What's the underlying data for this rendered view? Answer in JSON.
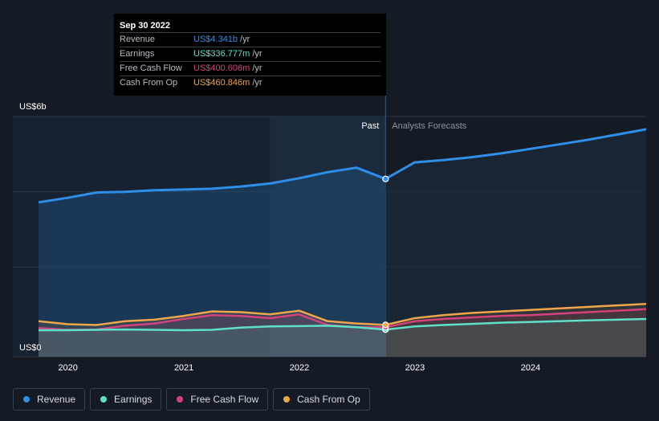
{
  "chart_data": {
    "type": "line",
    "y_axis": {
      "max_label": "US$6b",
      "min_label": "US$0",
      "ylim": [
        0,
        6
      ]
    },
    "x_axis": {
      "tick_labels": [
        "2020",
        "2021",
        "2022",
        "2023",
        "2024"
      ],
      "xlim": [
        "2019-09-30",
        "2024-12-31"
      ]
    },
    "divider": {
      "past_label": "Past",
      "forecast_label": "Analysts Forecasts",
      "date": "2022-09-30"
    },
    "highlight_start": "2021-09-30",
    "series": [
      {
        "name": "Revenue",
        "color": "#2e8ee8",
        "points": [
          [
            "2019-09-30",
            3.72
          ],
          [
            "2019-12-31",
            3.84
          ],
          [
            "2020-03-31",
            3.98
          ],
          [
            "2020-06-30",
            4.0
          ],
          [
            "2020-09-30",
            4.04
          ],
          [
            "2020-12-31",
            4.06
          ],
          [
            "2021-03-31",
            4.08
          ],
          [
            "2021-06-30",
            4.14
          ],
          [
            "2021-09-30",
            4.22
          ],
          [
            "2021-12-31",
            4.36
          ],
          [
            "2022-03-31",
            4.52
          ],
          [
            "2022-06-30",
            4.64
          ],
          [
            "2022-09-30",
            4.341
          ],
          [
            "2022-12-31",
            4.78
          ],
          [
            "2023-03-31",
            4.84
          ],
          [
            "2023-06-30",
            4.92
          ],
          [
            "2023-09-30",
            5.02
          ],
          [
            "2023-12-31",
            5.14
          ],
          [
            "2024-03-31",
            5.26
          ],
          [
            "2024-06-30",
            5.38
          ],
          [
            "2024-09-30",
            5.52
          ],
          [
            "2024-12-31",
            5.66
          ]
        ]
      },
      {
        "name": "Earnings",
        "color": "#5fe0c9",
        "points": [
          [
            "2019-09-30",
            0.32
          ],
          [
            "2019-12-31",
            0.32
          ],
          [
            "2020-03-31",
            0.33
          ],
          [
            "2020-06-30",
            0.34
          ],
          [
            "2020-09-30",
            0.33
          ],
          [
            "2020-12-31",
            0.32
          ],
          [
            "2021-03-31",
            0.33
          ],
          [
            "2021-06-30",
            0.39
          ],
          [
            "2021-09-30",
            0.42
          ],
          [
            "2021-12-31",
            0.43
          ],
          [
            "2022-03-31",
            0.44
          ],
          [
            "2022-06-30",
            0.4
          ],
          [
            "2022-09-30",
            0.337
          ],
          [
            "2022-12-31",
            0.42
          ],
          [
            "2023-03-31",
            0.46
          ],
          [
            "2023-06-30",
            0.49
          ],
          [
            "2023-09-30",
            0.52
          ],
          [
            "2023-12-31",
            0.54
          ],
          [
            "2024-03-31",
            0.56
          ],
          [
            "2024-06-30",
            0.58
          ],
          [
            "2024-09-30",
            0.6
          ],
          [
            "2024-12-31",
            0.62
          ]
        ]
      },
      {
        "name": "Free Cash Flow",
        "color": "#d2427c",
        "points": [
          [
            "2019-09-30",
            0.38
          ],
          [
            "2019-12-31",
            0.33
          ],
          [
            "2020-03-31",
            0.34
          ],
          [
            "2020-06-30",
            0.44
          ],
          [
            "2020-09-30",
            0.5
          ],
          [
            "2020-12-31",
            0.62
          ],
          [
            "2021-03-31",
            0.72
          ],
          [
            "2021-06-30",
            0.7
          ],
          [
            "2021-09-30",
            0.64
          ],
          [
            "2021-12-31",
            0.74
          ],
          [
            "2022-03-31",
            0.46
          ],
          [
            "2022-06-30",
            0.4
          ],
          [
            "2022-09-30",
            0.401
          ],
          [
            "2022-12-31",
            0.56
          ],
          [
            "2023-03-31",
            0.62
          ],
          [
            "2023-06-30",
            0.66
          ],
          [
            "2023-09-30",
            0.7
          ],
          [
            "2023-12-31",
            0.72
          ],
          [
            "2024-03-31",
            0.76
          ],
          [
            "2024-06-30",
            0.8
          ],
          [
            "2024-09-30",
            0.84
          ],
          [
            "2024-12-31",
            0.88
          ]
        ]
      },
      {
        "name": "Cash From Op",
        "color": "#efa64a",
        "points": [
          [
            "2019-09-30",
            0.56
          ],
          [
            "2019-12-31",
            0.48
          ],
          [
            "2020-03-31",
            0.46
          ],
          [
            "2020-06-30",
            0.56
          ],
          [
            "2020-09-30",
            0.6
          ],
          [
            "2020-12-31",
            0.7
          ],
          [
            "2021-03-31",
            0.82
          ],
          [
            "2021-06-30",
            0.8
          ],
          [
            "2021-09-30",
            0.74
          ],
          [
            "2021-12-31",
            0.84
          ],
          [
            "2022-03-31",
            0.56
          ],
          [
            "2022-06-30",
            0.5
          ],
          [
            "2022-09-30",
            0.461
          ],
          [
            "2022-12-31",
            0.64
          ],
          [
            "2023-03-31",
            0.72
          ],
          [
            "2023-06-30",
            0.78
          ],
          [
            "2023-09-30",
            0.82
          ],
          [
            "2023-12-31",
            0.86
          ],
          [
            "2024-03-31",
            0.9
          ],
          [
            "2024-06-30",
            0.94
          ],
          [
            "2024-09-30",
            0.98
          ],
          [
            "2024-12-31",
            1.02
          ]
        ]
      }
    ]
  },
  "tooltip": {
    "date": "Sep 30 2022",
    "rows": [
      {
        "label": "Revenue",
        "value": "US$4.341b",
        "unit": "/yr",
        "color": "#2e8ee8"
      },
      {
        "label": "Earnings",
        "value": "US$336.777m",
        "unit": "/yr",
        "color": "#5fe0c9"
      },
      {
        "label": "Free Cash Flow",
        "value": "US$400.606m",
        "unit": "/yr",
        "color": "#d2427c"
      },
      {
        "label": "Cash From Op",
        "value": "US$460.846m",
        "unit": "/yr",
        "color": "#efa64a"
      }
    ]
  },
  "legend": [
    {
      "label": "Revenue",
      "color": "#2e8ee8"
    },
    {
      "label": "Earnings",
      "color": "#5fe0c9"
    },
    {
      "label": "Free Cash Flow",
      "color": "#d2427c"
    },
    {
      "label": "Cash From Op",
      "color": "#efa64a"
    }
  ]
}
